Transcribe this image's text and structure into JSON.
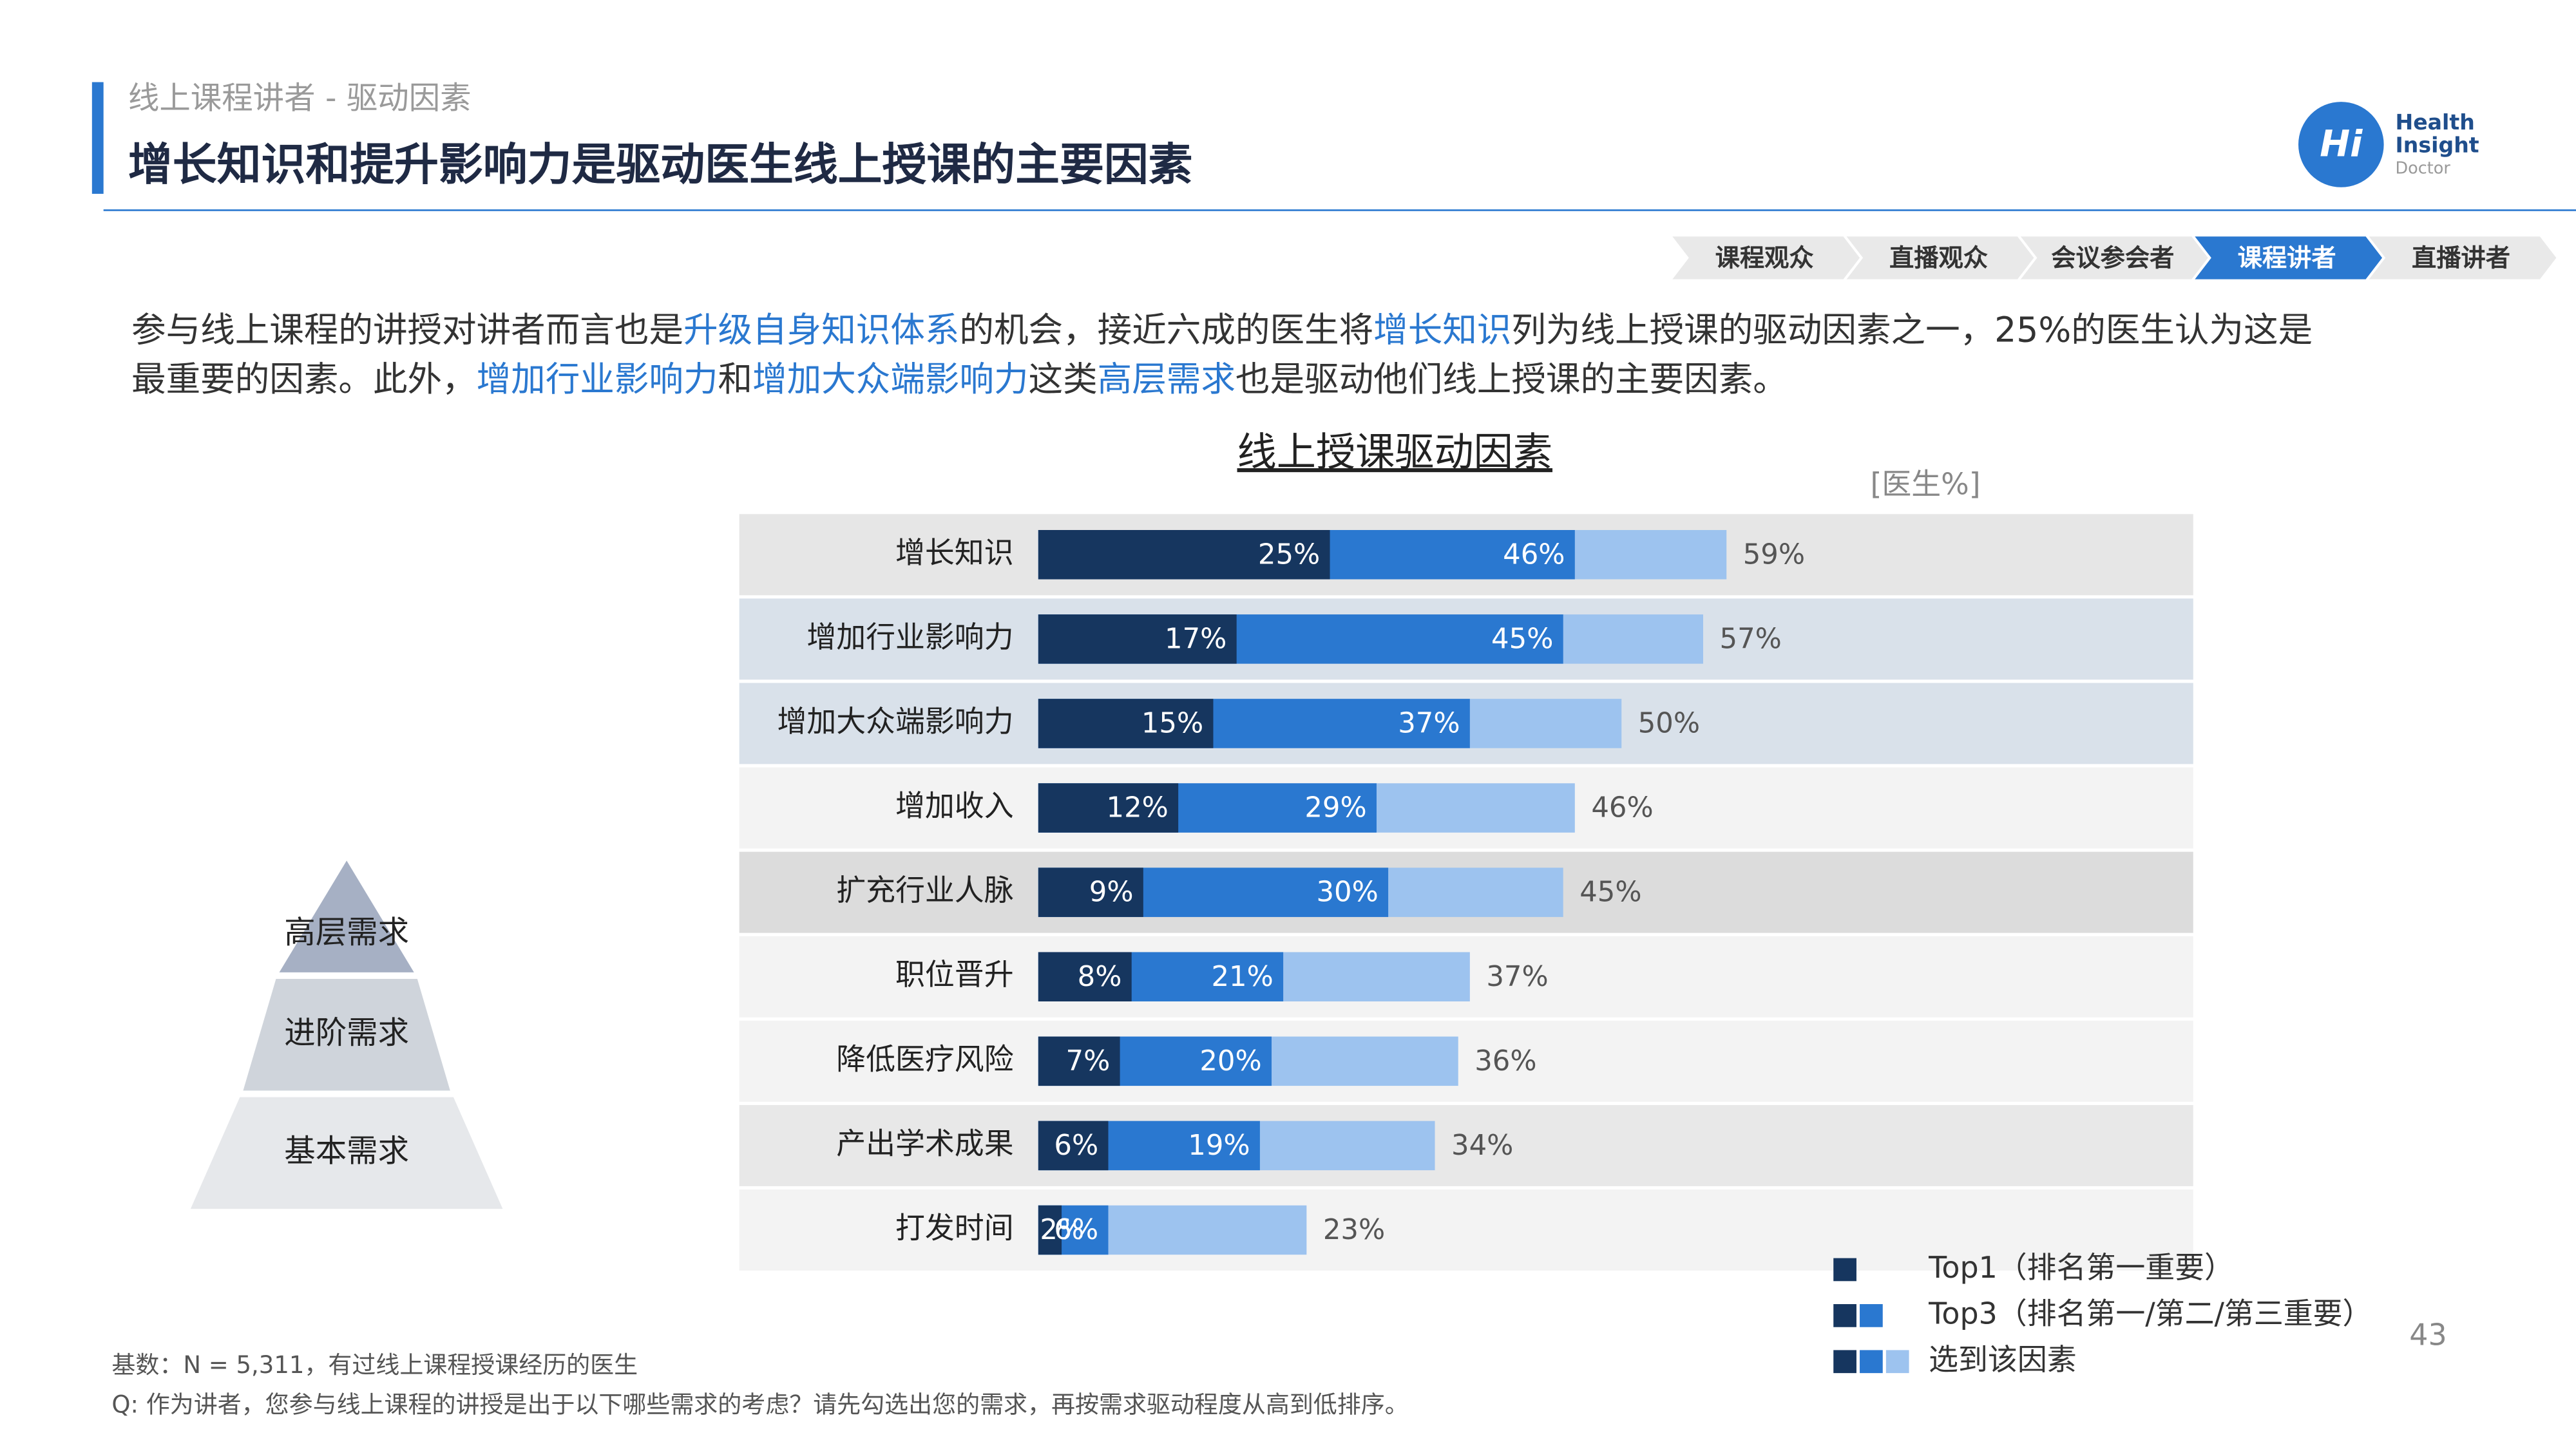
{
  "header": {
    "section": "线上课程讲者 - 驱动因素",
    "title": "增长知识和提升影响力是驱动医生线上授课的主要因素",
    "tabs": [
      {
        "label": "课程观众",
        "active": false
      },
      {
        "label": "直播观众",
        "active": false
      },
      {
        "label": "会议参会者",
        "active": false
      },
      {
        "label": "课程讲者",
        "active": true
      },
      {
        "label": "直播讲者",
        "active": false
      }
    ]
  },
  "logo": {
    "mark": "Hi",
    "lines": [
      "Health",
      "Insight",
      "Doctor"
    ]
  },
  "intro": [
    {
      "text": "参与线上课程的讲授对讲者而言也是",
      "highlight": false
    },
    {
      "text": "升级自身知识体系",
      "highlight": true
    },
    {
      "text": "的机会，接近六成的医生将",
      "highlight": false
    },
    {
      "text": "增长知识",
      "highlight": true
    },
    {
      "text": "列为线上授课的驱动因素之一，25%的医生认为这是最重要的因素。此外，",
      "highlight": false
    },
    {
      "text": "增加行业影响力",
      "highlight": true
    },
    {
      "text": "和",
      "highlight": false
    },
    {
      "text": "增加大众端影响力",
      "highlight": true
    },
    {
      "text": "这类",
      "highlight": false
    },
    {
      "text": "高层需求",
      "highlight": true
    },
    {
      "text": "也是驱动他们线上授课的主要因素。",
      "highlight": false
    }
  ],
  "chart_data": {
    "type": "bar",
    "orientation": "horizontal",
    "title": "线上授课驱动因素",
    "unit_label": "[医生%]",
    "categories": [
      "增长知识",
      "增加行业影响力",
      "增加大众端影响力",
      "增加收入",
      "扩充行业人脉",
      "职位晋升",
      "降低医疗风险",
      "产出学术成果",
      "打发时间"
    ],
    "series": [
      {
        "name": "Top1（排名第一重要）",
        "color": "#16365f",
        "values": [
          25,
          17,
          15,
          12,
          9,
          8,
          7,
          6,
          2
        ],
        "value_labels": [
          "25%",
          "17%",
          "15%",
          "12%",
          "9%",
          "8%",
          "7%",
          "6%",
          "2%"
        ]
      },
      {
        "name": "Top3（排名第一/第二/第三重要）",
        "color": "#2a78d0",
        "values": [
          46,
          45,
          37,
          29,
          30,
          21,
          20,
          19,
          6
        ],
        "value_labels": [
          "46%",
          "45%",
          "37%",
          "29%",
          "30%",
          "21%",
          "20%",
          "19%",
          "6%"
        ]
      },
      {
        "name": "选到该因素",
        "color": "#9dc3ef",
        "values": [
          59,
          57,
          50,
          46,
          45,
          37,
          36,
          34,
          23
        ],
        "value_labels": [
          "59%",
          "57%",
          "50%",
          "46%",
          "45%",
          "37%",
          "36%",
          "34%",
          "23%"
        ]
      }
    ]
  },
  "pyramid": [
    "高层需求",
    "进阶需求",
    "基本需求"
  ],
  "footnotes": [
    "基数：N = 5,311，有过线上课程授课经历的医生",
    "Q: 作为讲者，您参与线上课程的讲授是出于以下哪些需求的考虑？请先勾选出您的需求，再按需求驱动程度从高到低排序。"
  ],
  "page_number": "43"
}
